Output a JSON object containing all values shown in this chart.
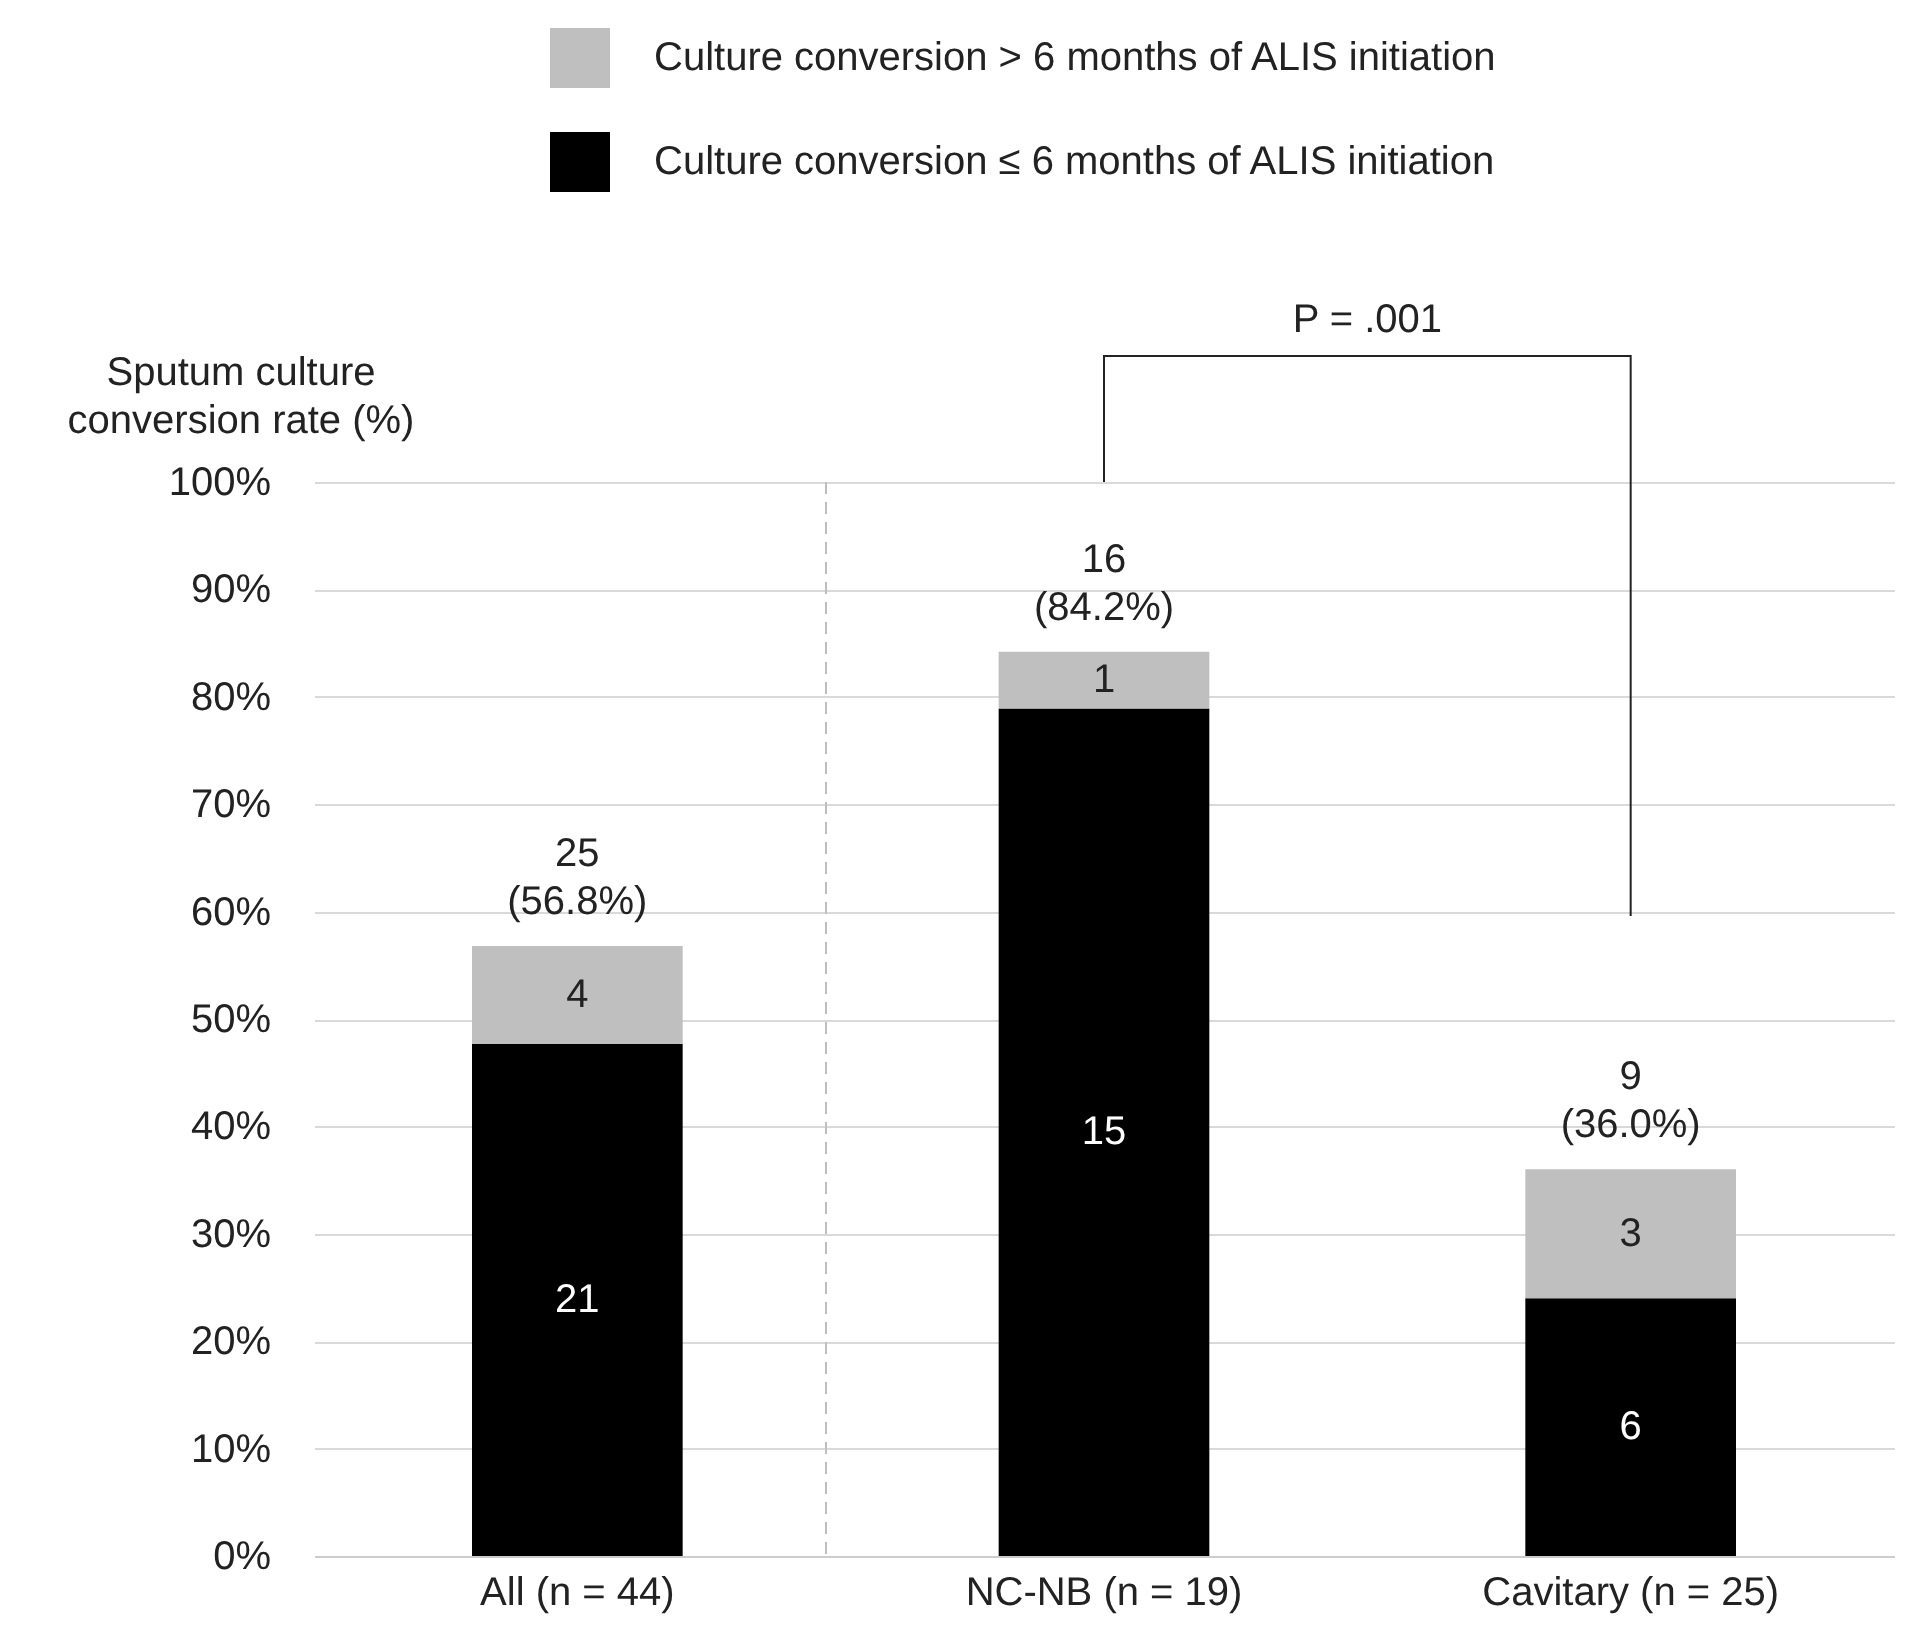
{
  "chart_data": {
    "type": "bar",
    "stacked": true,
    "ylabel": "Sputum culture\nconversion rate (%)",
    "categories": [
      "All (n = 44)",
      "NC-NB (n = 19)",
      "Cavitary (n = 25)"
    ],
    "series": [
      {
        "name": "Culture conversion ≤ 6 months of ALIS initiation",
        "color": "#000000",
        "values": [
          47.7,
          78.9,
          24.0
        ]
      },
      {
        "name": "Culture conversion > 6 months of ALIS initiation",
        "color": "#bfbfbf",
        "values": [
          9.1,
          5.3,
          12.0
        ]
      }
    ],
    "totals": [
      "25\n(56.8%)",
      "16\n(84.2%)",
      "9\n(36.0%)"
    ],
    "ylim": [
      0,
      100
    ],
    "yticks": [
      {
        "value": 0,
        "label": "0%"
      },
      {
        "value": 10,
        "label": "10%"
      },
      {
        "value": 20,
        "label": "20%"
      },
      {
        "value": 30,
        "label": "30%"
      },
      {
        "value": 40,
        "label": "40%"
      },
      {
        "value": 50,
        "label": "50%"
      },
      {
        "value": 60,
        "label": "60%"
      },
      {
        "value": 70,
        "label": "70%"
      },
      {
        "value": 80,
        "label": "80%"
      },
      {
        "value": 90,
        "label": "90%"
      },
      {
        "value": 100,
        "label": "100%"
      }
    ],
    "grid": "y",
    "legend": "top",
    "annotations": [
      "P = .001",
      "21",
      "15",
      "6",
      "4",
      "1",
      "3"
    ]
  }
}
